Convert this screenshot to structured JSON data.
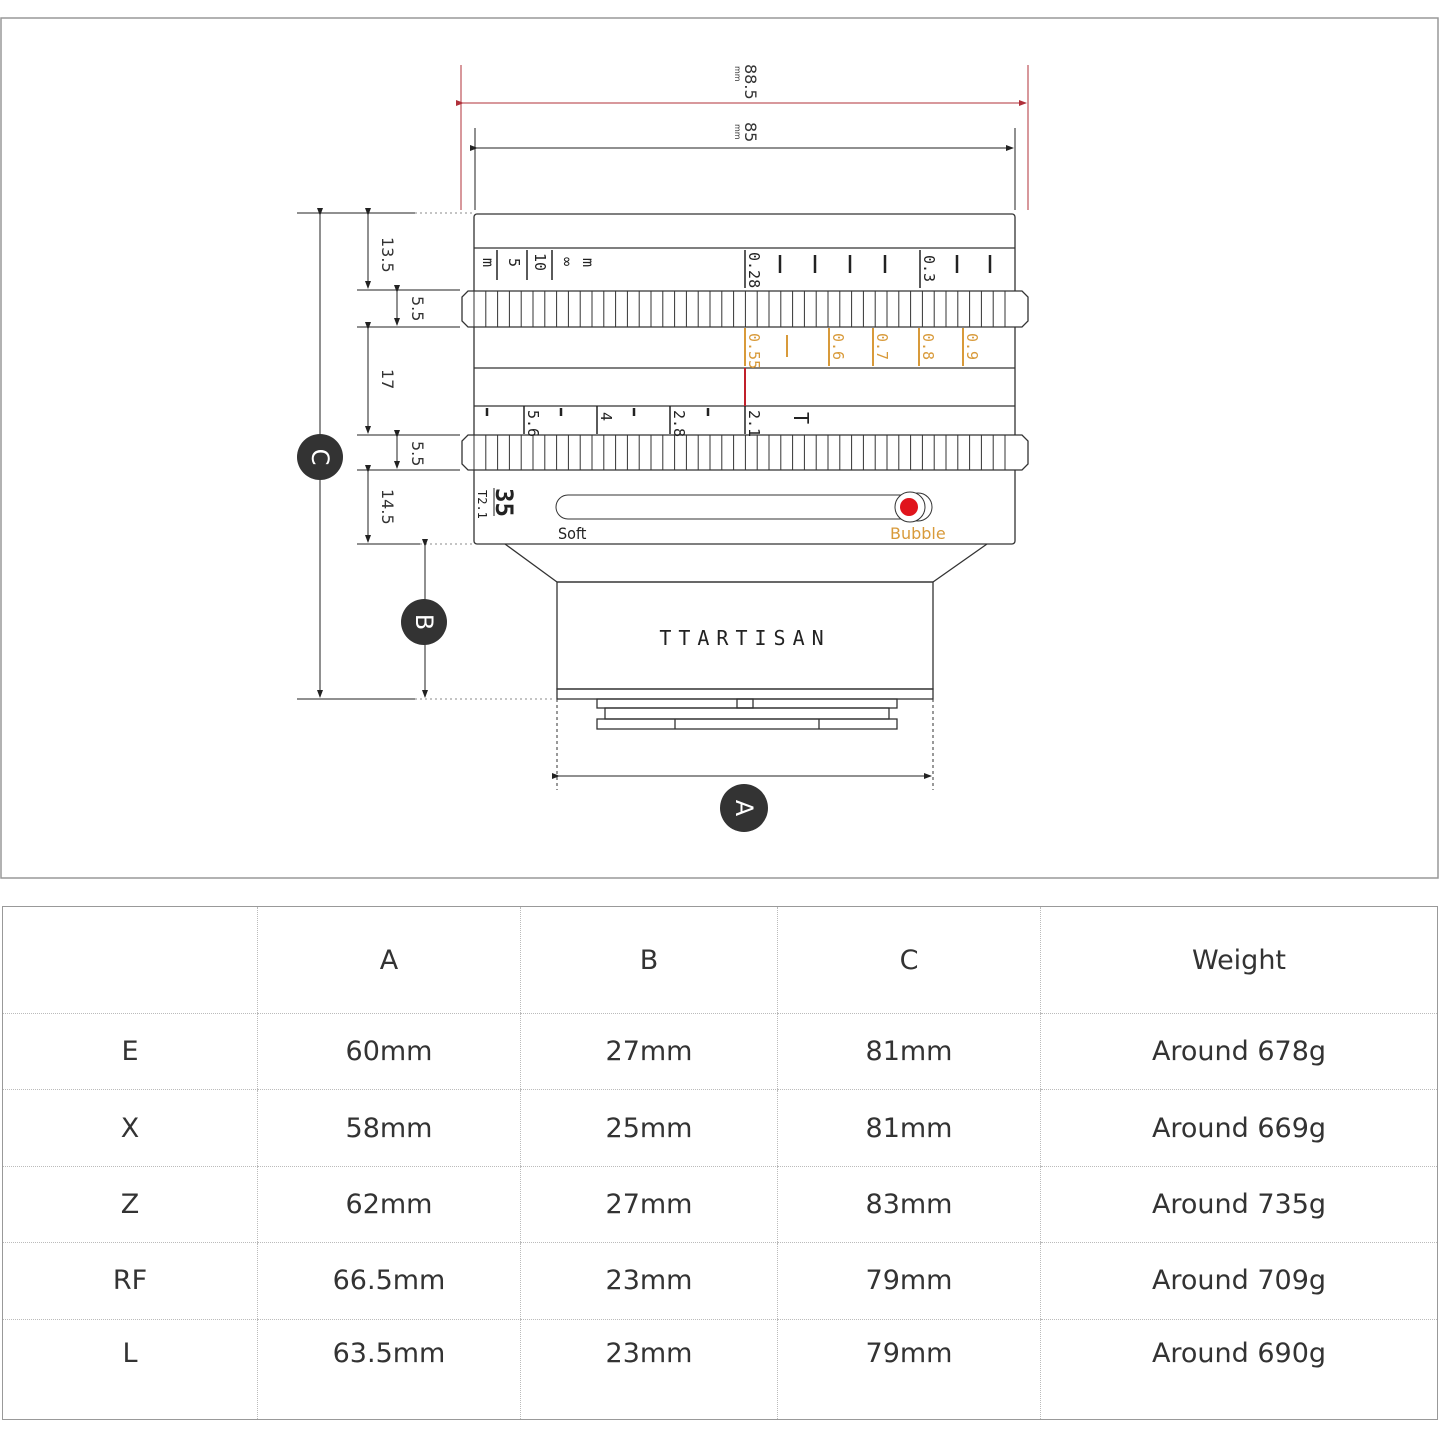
{
  "dimensions": {
    "overall_width": "88.5",
    "body_width": "85",
    "unit": "mm",
    "segments": [
      "13.5",
      "5.5",
      "17",
      "5.5",
      "14.5"
    ],
    "markers": {
      "a": "A",
      "b": "B",
      "c": "C"
    }
  },
  "lens": {
    "distance_scale": [
      "m",
      "5",
      "10",
      "∞",
      "m",
      "0.28",
      "0.3"
    ],
    "dof_scale": [
      "0.55",
      "0.6",
      "0.7",
      "0.8",
      "0.9"
    ],
    "aperture_scale": [
      "5.6",
      "4",
      "2.8",
      "2.1",
      "T"
    ],
    "focal_length": "35",
    "max_aperture": "T2.1",
    "slider_left": "Soft",
    "slider_right": "Bubble",
    "brand": "TTARTISAN",
    "colors": {
      "accent": "#d89a3a",
      "index": "#c0202a",
      "bubble": "#e0141c",
      "marker": "#333333"
    }
  },
  "table": {
    "headers": [
      "",
      "A",
      "B",
      "C",
      "Weight"
    ],
    "rows": [
      [
        "E",
        "60mm",
        "27mm",
        "81mm",
        "Around 678g"
      ],
      [
        "X",
        "58mm",
        "25mm",
        "81mm",
        "Around 669g"
      ],
      [
        "Z",
        "62mm",
        "27mm",
        "83mm",
        "Around 735g"
      ],
      [
        "RF",
        "66.5mm",
        "23mm",
        "79mm",
        "Around 709g"
      ],
      [
        "L",
        "63.5mm",
        "23mm",
        "79mm",
        "Around 690g"
      ]
    ]
  }
}
